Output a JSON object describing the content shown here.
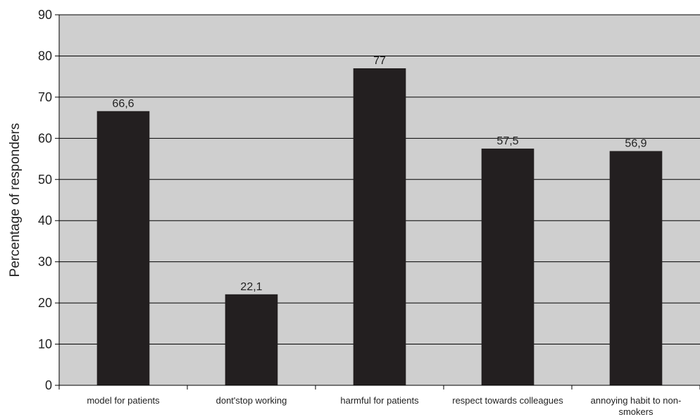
{
  "chart_data": {
    "type": "bar",
    "title": "",
    "xlabel": "",
    "ylabel": "Percentage of responders",
    "ylim": [
      0,
      90
    ],
    "yticks": [
      0,
      10,
      20,
      30,
      40,
      50,
      60,
      70,
      80,
      90
    ],
    "grid": true,
    "legend": "none",
    "categories": [
      [
        "model for patients"
      ],
      [
        "dont'stop working"
      ],
      [
        "harmful for patients"
      ],
      [
        "respect towards colleagues"
      ],
      [
        "annoying habit to non-",
        "smokers"
      ]
    ],
    "values": [
      66.6,
      22.1,
      77,
      57.5,
      56.9
    ],
    "value_labels": [
      "66,6",
      "22,1",
      "77",
      "57,5",
      "56,9"
    ],
    "colors": {
      "plot_background": "#cfcfcf",
      "bar": "#231f20",
      "gridline": "#000000"
    }
  }
}
